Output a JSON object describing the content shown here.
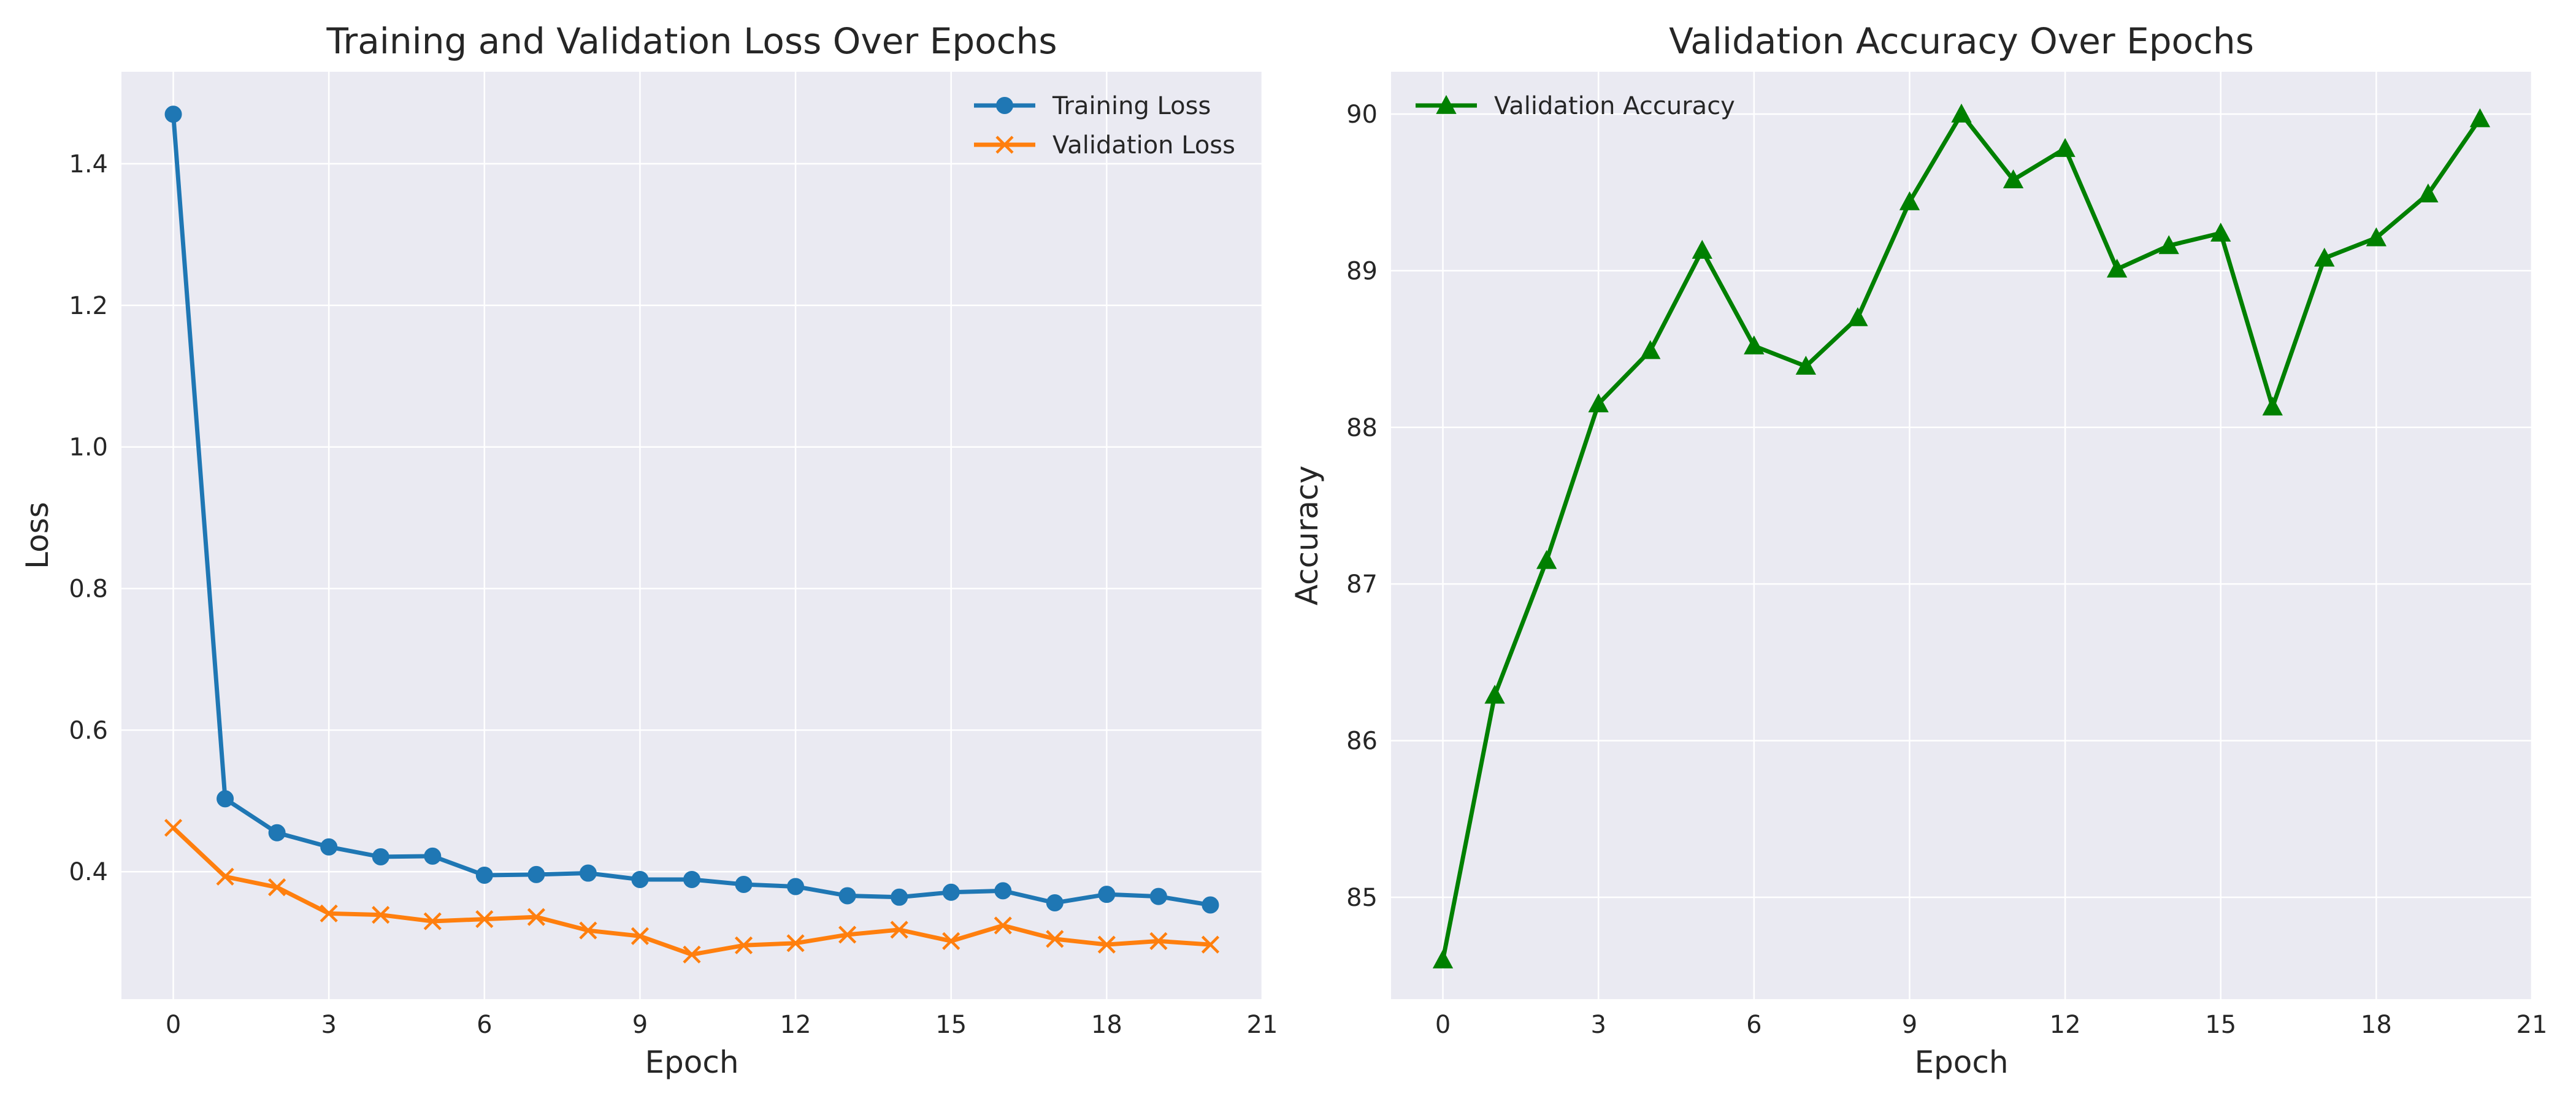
{
  "figure": {
    "background": "#ffffff",
    "plot_background": "#eaeaf2",
    "grid_color": "#ffffff"
  },
  "chart_data": [
    {
      "type": "line",
      "title": "Training and Validation Loss Over Epochs",
      "xlabel": "Epoch",
      "ylabel": "Loss",
      "xlim": [
        -1,
        21
      ],
      "ylim": [
        0.22,
        1.53
      ],
      "xticks": [
        0,
        3,
        6,
        9,
        12,
        15,
        18,
        21
      ],
      "yticks": [
        0.4,
        0.6,
        0.8,
        1.0,
        1.2,
        1.4
      ],
      "ytick_labels": [
        "0.4",
        "0.6",
        "0.8",
        "1.0",
        "1.2",
        "1.4"
      ],
      "grid": true,
      "legend": {
        "position": "top-right"
      },
      "x": [
        0,
        1,
        2,
        3,
        4,
        5,
        6,
        7,
        8,
        9,
        10,
        11,
        12,
        13,
        14,
        15,
        16,
        17,
        18,
        19,
        20
      ],
      "series": [
        {
          "name": "Training Loss",
          "marker": "circle",
          "color": "#1f77b4",
          "values": [
            1.47,
            0.503,
            0.455,
            0.435,
            0.421,
            0.422,
            0.395,
            0.396,
            0.398,
            0.389,
            0.389,
            0.382,
            0.379,
            0.366,
            0.364,
            0.371,
            0.373,
            0.356,
            0.368,
            0.365,
            0.353
          ]
        },
        {
          "name": "Validation Loss",
          "marker": "x",
          "color": "#ff7f0e",
          "values": [
            0.462,
            0.393,
            0.378,
            0.341,
            0.339,
            0.33,
            0.333,
            0.336,
            0.317,
            0.309,
            0.283,
            0.296,
            0.299,
            0.311,
            0.318,
            0.302,
            0.324,
            0.305,
            0.297,
            0.302,
            0.297
          ]
        }
      ]
    },
    {
      "type": "line",
      "title": "Validation Accuracy Over Epochs",
      "xlabel": "Epoch",
      "ylabel": "Accuracy",
      "xlim": [
        -1,
        21
      ],
      "ylim": [
        84.35,
        90.27
      ],
      "xticks": [
        0,
        3,
        6,
        9,
        12,
        15,
        18,
        21
      ],
      "yticks": [
        85,
        86,
        87,
        88,
        89,
        90
      ],
      "ytick_labels": [
        "85",
        "86",
        "87",
        "88",
        "89",
        "90"
      ],
      "grid": true,
      "legend": {
        "position": "top-left"
      },
      "x": [
        0,
        1,
        2,
        3,
        4,
        5,
        6,
        7,
        8,
        9,
        10,
        11,
        12,
        13,
        14,
        15,
        16,
        17,
        18,
        19,
        20
      ],
      "series": [
        {
          "name": "Validation Accuracy",
          "marker": "triangle",
          "color": "#008000",
          "values": [
            84.6,
            86.29,
            87.15,
            88.15,
            88.49,
            89.13,
            88.52,
            88.39,
            88.7,
            89.44,
            90.0,
            89.58,
            89.78,
            89.01,
            89.16,
            89.24,
            88.13,
            89.08,
            89.21,
            89.49,
            89.97
          ]
        }
      ]
    }
  ]
}
